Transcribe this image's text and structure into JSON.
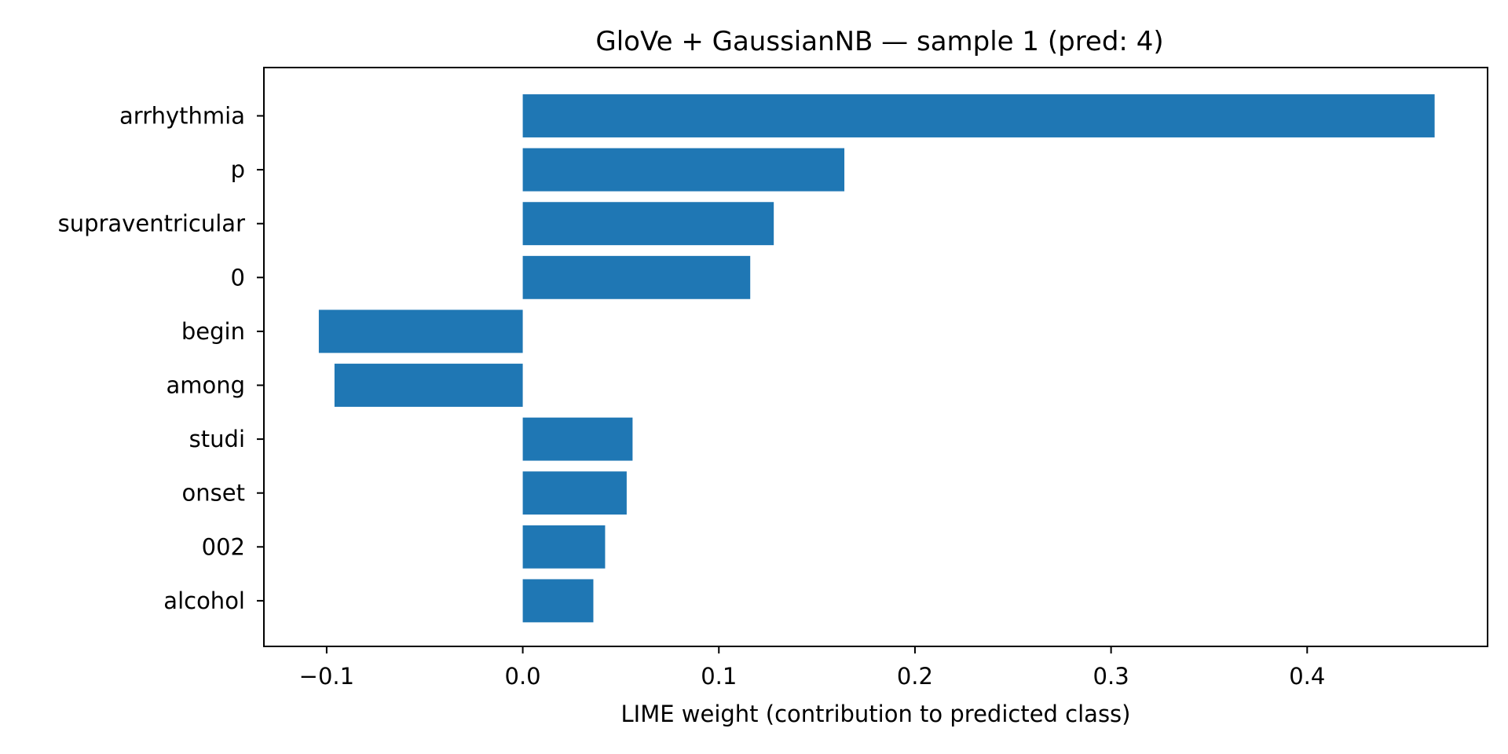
{
  "chart_data": {
    "type": "bar",
    "orientation": "horizontal",
    "title": "GloVe + GaussianNB — sample 1 (pred: 4)",
    "xlabel": "LIME weight (contribution to predicted class)",
    "ylabel": "",
    "categories": [
      "arrhythmia",
      "p",
      "supraventricular",
      "0",
      "begin",
      "among",
      "studi",
      "onset",
      "002",
      "alcohol"
    ],
    "values": [
      0.465,
      0.164,
      0.128,
      0.116,
      -0.104,
      -0.096,
      0.056,
      0.053,
      0.042,
      0.036
    ],
    "xlim": [
      -0.132,
      0.492
    ],
    "xticks": [
      -0.1,
      0.0,
      0.1,
      0.2,
      0.3,
      0.4
    ],
    "xtick_labels": [
      "−0.1",
      "0.0",
      "0.1",
      "0.2",
      "0.3",
      "0.4"
    ],
    "bar_color": "#1f77b4",
    "grid": false,
    "legend": "none"
  }
}
